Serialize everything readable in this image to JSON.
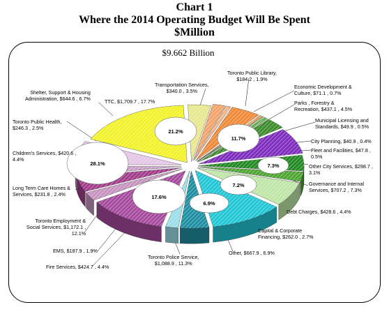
{
  "header": {
    "title": "Chart 1",
    "subtitle": "Where the 2014 Operating Budget Will Be Spent",
    "unit": "$Million"
  },
  "total_label": "$9.662 Billion",
  "chart_data": {
    "type": "pie",
    "title": "Chart 1",
    "subtitle": "Where the 2014 Operating Budget Will Be Spent",
    "unit": "$Million",
    "total": "$9.662 Billion",
    "slices": [
      {
        "name": "Transportation Services",
        "value": 340.0,
        "pct": 3.5,
        "color": "#e8e890"
      },
      {
        "name": "Toronto Public Library",
        "value": 184.2,
        "pct": 1.9,
        "color": "#f4a46a"
      },
      {
        "name": "Economic Development & Culture",
        "value": 71.1,
        "pct": 0.7,
        "color": "#f6b483"
      },
      {
        "name": "Parks , Forestry & Recreation",
        "value": 437.1,
        "pct": 4.5,
        "color": "#f08a38"
      },
      {
        "name": "Municipal Licensing and Standards",
        "value": 49.9,
        "pct": 0.5,
        "color": "#e8a060"
      },
      {
        "name": "City Planning",
        "value": 40.9,
        "pct": 0.4,
        "color": "#9ad08a"
      },
      {
        "name": "Fleet and Facilities",
        "value": 47.8,
        "pct": 0.5,
        "color": "#6cbc5a"
      },
      {
        "name": "Other City Services",
        "value": 298.7,
        "pct": 3.1,
        "color": "#3c8c2c"
      },
      {
        "name": "Governance and Internal Services",
        "value": 707.2,
        "pct": 7.3,
        "color": "#7e2dbe"
      },
      {
        "name": "Debt Charges",
        "value": 428.6,
        "pct": 4.4,
        "color": "#228a22"
      },
      {
        "name": "Capital & Corporate Financing",
        "value": 262.0,
        "pct": 2.7,
        "color": "#4ea632"
      },
      {
        "name": "Other",
        "value": 667.9,
        "pct": 6.9,
        "color": "#bfe6a6"
      },
      {
        "name": "Toronto Police Service",
        "value": 1088.9,
        "pct": 11.3,
        "color": "#22c7d6"
      },
      {
        "name": "Fire Services",
        "value": 424.7,
        "pct": 4.4,
        "color": "#1e8fa2"
      },
      {
        "name": "EMS",
        "value": 187.9,
        "pct": 1.9,
        "color": "#9bdde8"
      },
      {
        "name": "Toronto Employment & Social Services",
        "value": 1172.1,
        "pct": 12.1,
        "color": "#a64a9e"
      },
      {
        "name": "Long Term Care Homes & Services",
        "value": 231.8,
        "pct": 2.4,
        "color": "#c794c0"
      },
      {
        "name": "Children's Services",
        "value": 420.6,
        "pct": 4.4,
        "color": "#a23c8a"
      },
      {
        "name": "Toronto Public Health",
        "value": 246.3,
        "pct": 2.5,
        "color": "#c9a0c8"
      },
      {
        "name": "Shelter, Support & Housing Administration",
        "value": 644.6,
        "pct": 6.7,
        "color": "#e6c6e6"
      },
      {
        "name": "TTC",
        "value": 1709.7,
        "pct": 17.7,
        "color": "#f2f22a"
      }
    ],
    "group_labels": [
      {
        "text": "21.2%",
        "color": "#f2f22a"
      },
      {
        "text": "11.7%",
        "color": "#f08a38"
      },
      {
        "text": "7.3%",
        "color": "#7e2dbe"
      },
      {
        "text": "7.2%",
        "color": "#228a22"
      },
      {
        "text": "6.9%",
        "color": "#bfe6a6"
      },
      {
        "text": "17.6%",
        "color": "#22c7d6"
      },
      {
        "text": "28.1%",
        "color": "#a64a9e"
      }
    ],
    "groups": [
      {
        "label": "21.2%",
        "members": [
          "TTC",
          "Transportation Services"
        ]
      },
      {
        "label": "11.7%",
        "members": [
          "Toronto Public Library",
          "Economic Development & Culture",
          "Parks , Forestry & Recreation",
          "Municipal Licensing and Standards",
          "City Planning",
          "Fleet and Facilities",
          "Other City Services"
        ]
      },
      {
        "label": "7.3%",
        "members": [
          "Governance and Internal Services"
        ]
      },
      {
        "label": "7.2%",
        "members": [
          "Debt Charges",
          "Capital & Corporate Financing"
        ]
      },
      {
        "label": "6.9%",
        "members": [
          "Other"
        ]
      },
      {
        "label": "17.6%",
        "members": [
          "Toronto Police Service",
          "Fire Services",
          "EMS"
        ]
      },
      {
        "label": "28.1%",
        "members": [
          "Toronto Employment & Social Services",
          "Long Term Care Homes & Services",
          "Children's Services",
          "Toronto Public Health",
          "Shelter, Support & Housing Administration"
        ]
      }
    ]
  },
  "labels": {
    "transportation": {
      "line1": "Transportation Services,",
      "line2": "$340.0 , 3.5%"
    },
    "library": {
      "line1": "Toronto Public Library,",
      "line2": "$184.2 , 1.9%"
    },
    "econ": {
      "line1": "Economic Development &",
      "line2": "Culture, $71.1 , 0.7%"
    },
    "parks": {
      "line1": "Parks , Forestry &",
      "line2": "Recreation, $437.1 , 4.5%"
    },
    "mls": {
      "line1": "Municipal Licensing and",
      "line2": "Standards, $49.9 , 0.5%"
    },
    "planning": {
      "line1": "City Planning, $40.9 , 0.4%"
    },
    "fleet": {
      "line1": "Fleet and Facilities, $47.8 ,",
      "line2": "0.5%"
    },
    "othercity": {
      "line1": "Other City Services, $298.7 ,",
      "line2": "3.1%"
    },
    "governance": {
      "line1": "Governance and Internal",
      "line2": "Services, $707.2 , 7.3%"
    },
    "debt": {
      "line1": "Debt Charges, $428.6 , 4.4%"
    },
    "capital": {
      "line1": "Capital & Corporate",
      "line2": "Financing, $262.0 , 2.7%"
    },
    "other": {
      "line1": "Other, $667.9 , 6.9%"
    },
    "police": {
      "line1": "Toronto Police Service,",
      "line2": "$1,088.9 , 11.3%"
    },
    "fire": {
      "line1": "Fire Services, $424.7 , 4.4%"
    },
    "ems": {
      "line1": "EMS, $187.9 , 1.9%"
    },
    "tess": {
      "line1": "Toronto Employment &",
      "line2": "Social Services, $1,172.1 ,",
      "line3": "12.1%"
    },
    "ltc": {
      "line1": "Long Term Care Homes &",
      "line2": "Services, $231.8 , 2.4%"
    },
    "children": {
      "line1": "Children's Services, $420.6 ,",
      "line2": "4.4%"
    },
    "health": {
      "line1": "Toronto Public Health,",
      "line2": "$246.3 , 2.5%"
    },
    "shelter": {
      "line1": "Shelter, Support & Housing",
      "line2": "Administration, $644.6 , 6.7%"
    },
    "ttc": {
      "line1": "TTC, $1,709.7 , 17.7%"
    }
  }
}
